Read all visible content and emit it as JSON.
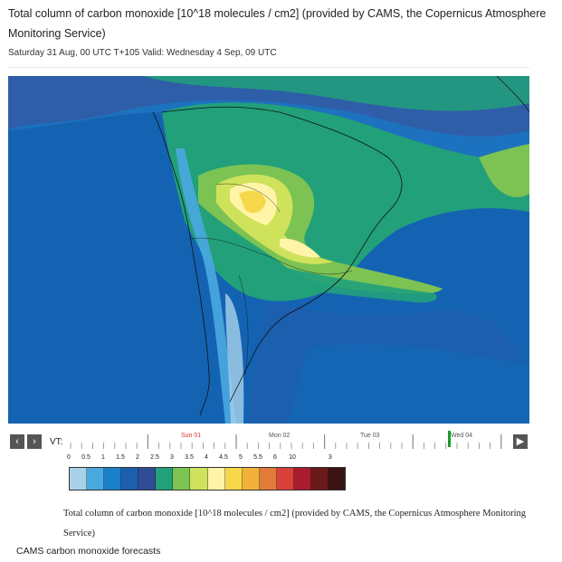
{
  "header": {
    "title": "Total column of carbon monoxide [10^18 molecules / cm2] (provided by CAMS, the Copernicus Atmosphere Monitoring Service)",
    "subtitle": "Saturday 31 Aug, 00 UTC T+105 Valid: Wednesday 4 Sep, 09 UTC"
  },
  "controls": {
    "prev_label": "‹",
    "next_label": "›",
    "play_label": "▶",
    "vt_label": "VT:",
    "days": [
      "Sun 01",
      "Mon 02",
      "Tue 03",
      "Wed 04"
    ],
    "selected_day": "Wed 04"
  },
  "legend": {
    "tick_labels": [
      "0",
      "0.5",
      "1",
      "1.5",
      "2",
      "2.5",
      "3",
      "3.5",
      "4",
      "4.5",
      "5",
      "5.5",
      "6",
      "10",
      "3"
    ],
    "colors": [
      "#a8d2ea",
      "#4aa8e0",
      "#1a80cc",
      "#1c5fae",
      "#2f4c95",
      "#21a07a",
      "#7cc353",
      "#cfe25c",
      "#fff4a8",
      "#f7d84a",
      "#f2b23a",
      "#e27a3a",
      "#d8403a",
      "#a81c2e",
      "#6a1a1a",
      "#3a1414"
    ]
  },
  "caption": "Total column of carbon monoxide [10^18 molecules / cm2] (provided by CAMS, the Copernicus Atmosphere Monitoring Service)",
  "footer": "CAMS carbon monoxide forecasts"
}
